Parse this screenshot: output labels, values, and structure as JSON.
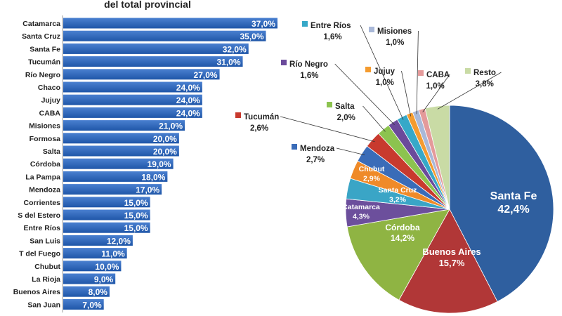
{
  "chart_data": [
    {
      "type": "bar",
      "orientation": "horizontal",
      "title": "del total provincial",
      "categories": [
        "Catamarca",
        "Santa Cruz",
        "Santa Fe",
        "Tucumán",
        "Río Negro",
        "Chaco",
        "Jujuy",
        "CABA",
        "Misiones",
        "Formosa",
        "Salta",
        "Córdoba",
        "La Pampa",
        "Mendoza",
        "Corrientes",
        "S del Estero",
        "Entre Ríos",
        "San Luis",
        "T del Fuego",
        "Chubut",
        "La Rioja",
        "Buenos Aires",
        "San Juan"
      ],
      "values": [
        37,
        35,
        32,
        31,
        27,
        24,
        24,
        24,
        21,
        20,
        20,
        19,
        18,
        17,
        15,
        15,
        15,
        12,
        11,
        10,
        9,
        8,
        7
      ],
      "labels": [
        "37,0%",
        "35,0%",
        "32,0%",
        "31,0%",
        "27,0%",
        "24,0%",
        "24,0%",
        "24,0%",
        "21,0%",
        "20,0%",
        "20,0%",
        "19,0%",
        "18,0%",
        "17,0%",
        "15,0%",
        "15,0%",
        "15,0%",
        "12,0%",
        "11,0%",
        "10,0%",
        "9,0%",
        "8,0%",
        "7,0%"
      ],
      "color": "#2a62b8",
      "grid": false
    },
    {
      "type": "pie",
      "categories": [
        "Santa Fe",
        "Buenos Aires",
        "Córdoba",
        "Catamarca",
        "Santa Cruz",
        "Chubut",
        "Mendoza",
        "Tucumán",
        "Salta",
        "Río Negro",
        "Entre Ríos",
        "Jujuy",
        "Misiones",
        "CABA",
        "Resto"
      ],
      "values": [
        42.4,
        15.7,
        14.2,
        4.3,
        3.2,
        2.9,
        2.7,
        2.6,
        2.0,
        1.6,
        1.6,
        1.0,
        1.0,
        1.0,
        3.8
      ],
      "labels": [
        "42,4%",
        "15,7%",
        "14,2%",
        "4,3%",
        "3,2%",
        "2,9%",
        "2,7%",
        "2,6%",
        "2,0%",
        "1,6%",
        "1,6%",
        "1,0%",
        "1,0%",
        "1,0%",
        "3,8%"
      ],
      "colors": [
        "#2f5f9f",
        "#b13737",
        "#8fb443",
        "#6c4f9c",
        "#3aa5c6",
        "#ef8a28",
        "#3a6cb8",
        "#c83a2e",
        "#8cc34f",
        "#6b4a9b",
        "#36a8c8",
        "#f49b2f",
        "#a9b8d8",
        "#e49a9a",
        "#c9dba5"
      ]
    }
  ]
}
